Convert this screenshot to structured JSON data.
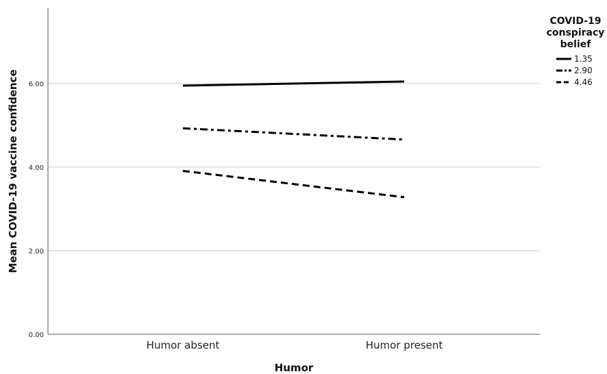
{
  "chart_data": {
    "type": "line",
    "categories": [
      "Humor absent",
      "Humor present"
    ],
    "xlabel": "Humor",
    "ylabel": "Mean COVID-19 vaccine confidence",
    "ylim": [
      0,
      8
    ],
    "yticks": [
      "0.00",
      "2.00",
      "4.00",
      "6.00"
    ],
    "ytick_values": [
      0,
      2,
      4,
      6
    ],
    "grid": "horizontal",
    "legend": {
      "title": [
        "COVID-19",
        "conspiracy",
        "belief"
      ],
      "placement": "top-right"
    },
    "series": [
      {
        "name": "1.35",
        "style": "solid",
        "values": [
          5.95,
          6.05
        ]
      },
      {
        "name": "2.90",
        "style": "dashdot",
        "values": [
          4.93,
          4.66
        ]
      },
      {
        "name": "4.46",
        "style": "dashed",
        "values": [
          3.91,
          3.28
        ]
      }
    ]
  },
  "colors": {
    "line": "#000000",
    "grid": "#c8c8c8",
    "axis": "#555555"
  }
}
